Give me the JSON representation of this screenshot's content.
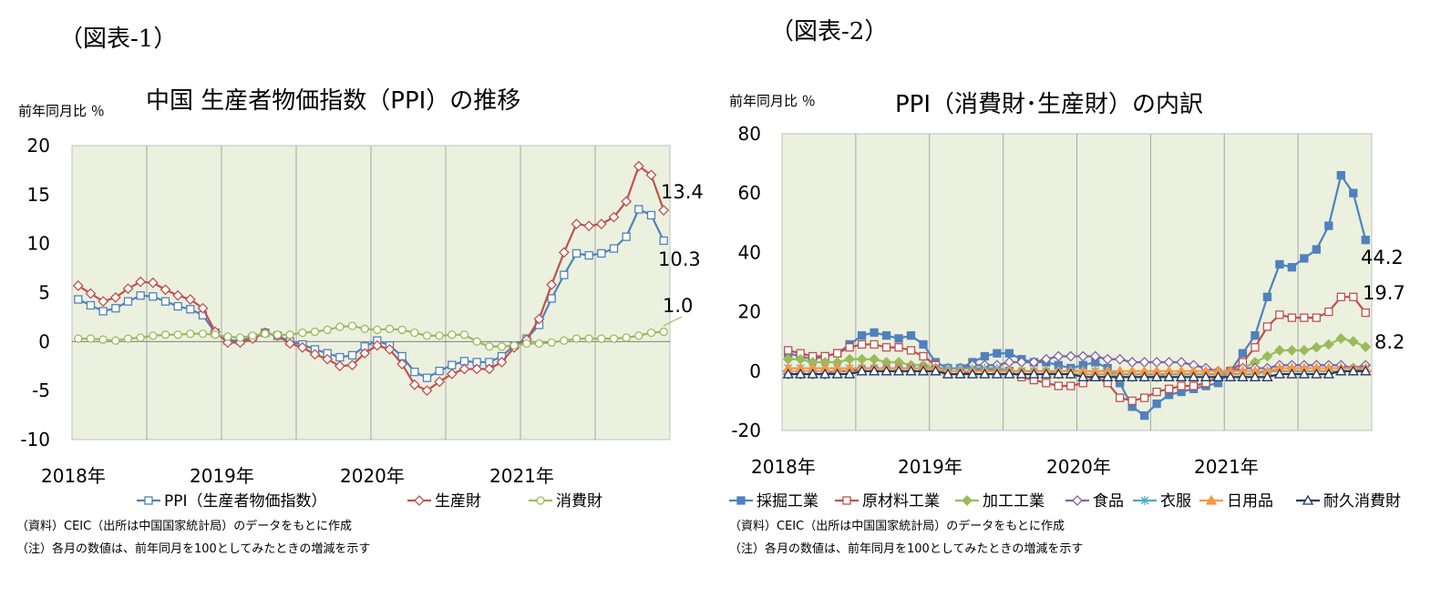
{
  "chart1": {
    "fig_label": "（図表-1）",
    "unit": "前年同月比 ％",
    "title": "中国 生産者物価指数（PPI）の推移",
    "note1": "（資料）CEIC（出所は中国国家統計局）のデータをもとに作成",
    "note2": "（注）各月の数値は、前年同月を100としてみたときの増減を示す"
  },
  "chart2": {
    "fig_label": "（図表-2）",
    "unit": "前年同月比 ％",
    "title": "PPI（消費財･生産財）の内訳",
    "note1": "（資料）CEIC（出所は中国国家統計局）のデータをもとに作成",
    "note2": "（注）各月の数値は、前年同月を100としてみたときの増減を示す"
  },
  "chart_data": [
    {
      "type": "line",
      "title": "中国 生産者物価指数（PPI）の推移",
      "ylabel": "前年同月比 ％",
      "ylim": [
        -10,
        20
      ],
      "yticks": [
        20,
        15,
        10,
        5,
        0,
        -5,
        -10
      ],
      "x": [
        "2018-01",
        "2018-02",
        "2018-03",
        "2018-04",
        "2018-05",
        "2018-06",
        "2018-07",
        "2018-08",
        "2018-09",
        "2018-10",
        "2018-11",
        "2018-12",
        "2019-01",
        "2019-02",
        "2019-03",
        "2019-04",
        "2019-05",
        "2019-06",
        "2019-07",
        "2019-08",
        "2019-09",
        "2019-10",
        "2019-11",
        "2019-12",
        "2020-01",
        "2020-02",
        "2020-03",
        "2020-04",
        "2020-05",
        "2020-06",
        "2020-07",
        "2020-08",
        "2020-09",
        "2020-10",
        "2020-11",
        "2020-12",
        "2021-01",
        "2021-02",
        "2021-03",
        "2021-04",
        "2021-05",
        "2021-06",
        "2021-07",
        "2021-08",
        "2021-09",
        "2021-10",
        "2021-11",
        "2021-12"
      ],
      "xtick_labels": [
        "2018年",
        "2019年",
        "2020年",
        "2021年"
      ],
      "grid": true,
      "legend_position": "bottom",
      "series": [
        {
          "name": "PPI（生産者物価指数）",
          "color": "#4f81bd",
          "marker": "square-open",
          "values": [
            4.3,
            3.7,
            3.1,
            3.4,
            4.1,
            4.7,
            4.6,
            4.1,
            3.6,
            3.3,
            2.7,
            0.9,
            0.1,
            0.1,
            0.4,
            0.9,
            0.6,
            0.0,
            -0.3,
            -0.8,
            -1.2,
            -1.6,
            -1.4,
            -0.5,
            0.1,
            -0.4,
            -1.5,
            -3.1,
            -3.7,
            -3.0,
            -2.4,
            -2.0,
            -2.1,
            -2.1,
            -1.5,
            -0.4,
            0.3,
            1.7,
            4.4,
            6.8,
            9.0,
            8.8,
            9.0,
            9.5,
            10.7,
            13.5,
            12.9,
            10.3
          ]
        },
        {
          "name": "生産財",
          "color": "#c0504d",
          "marker": "diamond-open",
          "values": [
            5.7,
            4.9,
            4.1,
            4.5,
            5.4,
            6.1,
            6.0,
            5.3,
            4.7,
            4.3,
            3.4,
            1.0,
            -0.1,
            -0.1,
            0.3,
            0.9,
            0.6,
            -0.2,
            -0.6,
            -1.3,
            -1.8,
            -2.5,
            -2.4,
            -1.2,
            -0.4,
            -0.8,
            -2.3,
            -4.4,
            -5.0,
            -4.1,
            -3.3,
            -2.8,
            -2.8,
            -2.8,
            -2.1,
            -0.6,
            0.2,
            2.3,
            5.8,
            9.1,
            12.0,
            11.8,
            12.0,
            12.7,
            14.3,
            17.9,
            17.0,
            13.4
          ]
        },
        {
          "name": "消費財",
          "color": "#9bbb59",
          "marker": "circle-open",
          "values": [
            0.3,
            0.3,
            0.2,
            0.1,
            0.3,
            0.4,
            0.6,
            0.7,
            0.7,
            0.8,
            0.8,
            0.7,
            0.5,
            0.4,
            0.6,
            0.8,
            0.7,
            0.7,
            0.9,
            1.0,
            1.2,
            1.5,
            1.6,
            1.3,
            1.2,
            1.3,
            1.2,
            0.9,
            0.6,
            0.6,
            0.7,
            0.7,
            0.0,
            -0.5,
            -0.5,
            -0.4,
            -0.2,
            -0.2,
            -0.1,
            0.1,
            0.3,
            0.3,
            0.3,
            0.3,
            0.4,
            0.6,
            0.9,
            1.0
          ]
        }
      ],
      "end_labels": [
        "13.4",
        "10.3",
        "1.0"
      ]
    },
    {
      "type": "line",
      "title": "PPI（消費財･生産財）の内訳",
      "ylabel": "前年同月比 ％",
      "ylim": [
        -20,
        80
      ],
      "yticks": [
        80,
        60,
        40,
        20,
        0,
        -20
      ],
      "x": [
        "2018-01",
        "2018-02",
        "2018-03",
        "2018-04",
        "2018-05",
        "2018-06",
        "2018-07",
        "2018-08",
        "2018-09",
        "2018-10",
        "2018-11",
        "2018-12",
        "2019-01",
        "2019-02",
        "2019-03",
        "2019-04",
        "2019-05",
        "2019-06",
        "2019-07",
        "2019-08",
        "2019-09",
        "2019-10",
        "2019-11",
        "2019-12",
        "2020-01",
        "2020-02",
        "2020-03",
        "2020-04",
        "2020-05",
        "2020-06",
        "2020-07",
        "2020-08",
        "2020-09",
        "2020-10",
        "2020-11",
        "2020-12",
        "2021-01",
        "2021-02",
        "2021-03",
        "2021-04",
        "2021-05",
        "2021-06",
        "2021-07",
        "2021-08",
        "2021-09",
        "2021-10",
        "2021-11",
        "2021-12"
      ],
      "xtick_labels": [
        "2018年",
        "2019年",
        "2020年",
        "2021年"
      ],
      "grid": true,
      "legend_position": "bottom",
      "series": [
        {
          "name": "採掘工業",
          "color": "#4f81bd",
          "marker": "square-filled",
          "values": [
            6,
            5,
            4,
            5,
            6,
            9,
            12,
            13,
            12,
            11,
            12,
            9,
            3,
            1,
            1,
            3,
            5,
            6,
            6,
            4,
            3,
            3,
            2,
            1,
            2,
            3,
            1,
            -4,
            -12,
            -15,
            -11,
            -8,
            -7,
            -6,
            -5,
            -4,
            0,
            6,
            12,
            25,
            36,
            35,
            38,
            41,
            49,
            66,
            60,
            44.2
          ]
        },
        {
          "name": "原材料工業",
          "color": "#c0504d",
          "marker": "square-open",
          "values": [
            7,
            6,
            5,
            5,
            6,
            8,
            9,
            9,
            8,
            8,
            7,
            5,
            2,
            -1,
            -1,
            0,
            1,
            0,
            0,
            -2,
            -3,
            -4,
            -5,
            -5,
            -4,
            -2,
            -4,
            -9,
            -10,
            -9,
            -7,
            -6,
            -5,
            -5,
            -4,
            -2,
            0,
            3,
            8,
            15,
            19,
            18,
            18,
            18,
            20,
            25,
            25,
            19.7
          ]
        },
        {
          "name": "加工工業",
          "color": "#9bbb59",
          "marker": "diamond-filled",
          "values": [
            4,
            4,
            3,
            3,
            3,
            4,
            4,
            4,
            3,
            3,
            2,
            2,
            1,
            1,
            1,
            1,
            1,
            1,
            0,
            0,
            0,
            0,
            -1,
            -1,
            -1,
            -1,
            -1,
            -2,
            -2,
            -2,
            -2,
            -1,
            -1,
            -1,
            -1,
            -1,
            0,
            1,
            3,
            5,
            7,
            7,
            7,
            8,
            9,
            11,
            10,
            8.2
          ]
        },
        {
          "name": "食品",
          "color": "#8064a2",
          "marker": "diamond-open",
          "values": [
            -1,
            -1,
            -1,
            -1,
            0,
            0,
            1,
            1,
            1,
            1,
            1,
            1,
            1,
            1,
            1,
            2,
            2,
            2,
            3,
            3,
            3,
            4,
            5,
            5,
            5,
            5,
            4,
            4,
            3,
            3,
            3,
            3,
            3,
            2,
            1,
            0,
            0,
            1,
            1,
            1,
            2,
            2,
            2,
            2,
            2,
            2,
            1,
            2
          ]
        },
        {
          "name": "衣服",
          "color": "#4bacc6",
          "marker": "star",
          "values": [
            1,
            1,
            1,
            1,
            1,
            1,
            1,
            1,
            1,
            1,
            1,
            1,
            1,
            1,
            1,
            1,
            1,
            1,
            0,
            0,
            0,
            0,
            0,
            0,
            0,
            0,
            0,
            -1,
            -1,
            -1,
            -1,
            -1,
            -1,
            -1,
            -1,
            -1,
            -1,
            -1,
            -1,
            0,
            0,
            0,
            0,
            0,
            0,
            0,
            0,
            1
          ]
        },
        {
          "name": "日用品",
          "color": "#f79646",
          "marker": "triangle-filled",
          "values": [
            1,
            1,
            1,
            1,
            1,
            1,
            1,
            1,
            1,
            1,
            1,
            1,
            1,
            0,
            0,
            0,
            0,
            0,
            0,
            0,
            0,
            0,
            0,
            0,
            0,
            0,
            0,
            0,
            0,
            0,
            0,
            0,
            0,
            0,
            0,
            0,
            0,
            0,
            0,
            0,
            1,
            1,
            1,
            1,
            1,
            1,
            1,
            1
          ]
        },
        {
          "name": "耐久消費財",
          "color": "#1f3864",
          "marker": "triangle-open",
          "values": [
            -1,
            -1,
            -1,
            -1,
            -1,
            -1,
            0,
            0,
            0,
            0,
            0,
            0,
            0,
            -1,
            -1,
            -1,
            -1,
            -1,
            -1,
            -1,
            -1,
            -1,
            -1,
            -1,
            -2,
            -2,
            -2,
            -2,
            -2,
            -2,
            -2,
            -2,
            -2,
            -2,
            -2,
            -2,
            -2,
            -2,
            -2,
            -2,
            -1,
            -1,
            -1,
            -1,
            -1,
            0,
            0,
            0
          ]
        }
      ],
      "end_labels": [
        "44.2",
        "19.7",
        "8.2"
      ]
    }
  ]
}
